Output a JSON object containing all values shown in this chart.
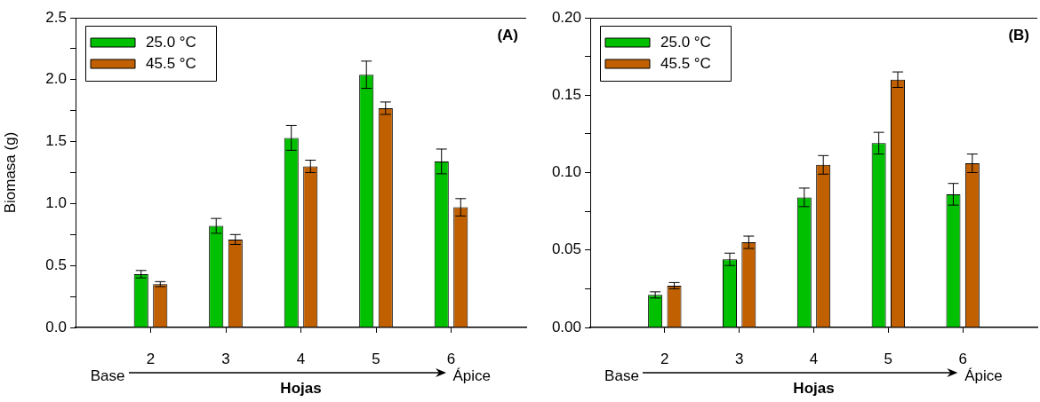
{
  "chart_data": [
    {
      "type": "bar",
      "annotations": [
        "(A)",
        "Base",
        "Ápice"
      ],
      "xlabel": "Hojas",
      "ylabel": "Biomasa (g)",
      "x": [
        2,
        3,
        4,
        5,
        6
      ],
      "xlim": [
        1,
        7
      ],
      "xticks": [
        2,
        3,
        4,
        5,
        6
      ],
      "ylim": [
        0,
        2.5
      ],
      "yticks": [
        {
          "value": 0,
          "label": "0.0"
        },
        {
          "value": 0.25,
          "label": null
        },
        {
          "value": 0.5,
          "label": "0.5"
        },
        {
          "value": 0.75,
          "label": null
        },
        {
          "value": 1,
          "label": "1.0"
        },
        {
          "value": 1.25,
          "label": null
        },
        {
          "value": 1.5,
          "label": "1.5"
        },
        {
          "value": 1.75,
          "label": null
        },
        {
          "value": 2,
          "label": "2.0"
        },
        {
          "value": 2.25,
          "label": null
        },
        {
          "value": 2.5,
          "label": "2.5"
        }
      ],
      "legend": "top left",
      "grid": false,
      "series": [
        {
          "name": "25.0 °C",
          "color": "#00c000",
          "values": [
            0.43,
            0.82,
            1.53,
            2.04,
            1.34
          ],
          "errors": [
            0.03,
            0.06,
            0.1,
            0.11,
            0.1
          ]
        },
        {
          "name": "45.5 °C",
          "color": "#c06000",
          "values": [
            0.35,
            0.71,
            1.3,
            1.77,
            0.97
          ],
          "errors": [
            0.02,
            0.04,
            0.05,
            0.05,
            0.07
          ]
        }
      ]
    },
    {
      "type": "bar",
      "annotations": [
        "(B)",
        "Base",
        "Ápice"
      ],
      "xlabel": "Hojas",
      "x": [
        2,
        3,
        4,
        5,
        6
      ],
      "xlim": [
        1,
        7
      ],
      "xticks": [
        2,
        3,
        4,
        5,
        6
      ],
      "ylim": [
        0,
        0.2
      ],
      "yticks": [
        {
          "value": 0,
          "label": "0.00"
        },
        {
          "value": 0.025,
          "label": null
        },
        {
          "value": 0.05,
          "label": "0.05"
        },
        {
          "value": 0.075,
          "label": null
        },
        {
          "value": 0.1,
          "label": "0.10"
        },
        {
          "value": 0.125,
          "label": null
        },
        {
          "value": 0.15,
          "label": "0.15"
        },
        {
          "value": 0.175,
          "label": null
        },
        {
          "value": 0.2,
          "label": "0.20"
        }
      ],
      "legend": "top left",
      "grid": false,
      "series": [
        {
          "name": "25.0 °C",
          "color": "#00c000",
          "values": [
            0.021,
            0.044,
            0.084,
            0.119,
            0.086
          ],
          "errors": [
            0.002,
            0.004,
            0.006,
            0.007,
            0.007
          ]
        },
        {
          "name": "45.5 °C",
          "color": "#c06000",
          "values": [
            0.027,
            0.055,
            0.105,
            0.16,
            0.106
          ],
          "errors": [
            0.002,
            0.004,
            0.006,
            0.005,
            0.006
          ]
        }
      ]
    }
  ]
}
